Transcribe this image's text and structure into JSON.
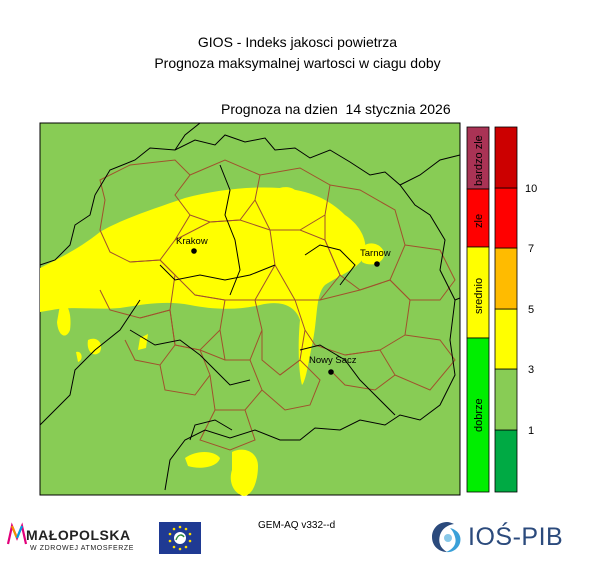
{
  "header": {
    "title_line1": "GIOS - Indeks jakosci powietrza",
    "title_line2": "Prognoza maksymalnej wartosci w ciagu doby",
    "forecast_date": "Prognoza na dzien  14 stycznia 2026"
  },
  "colors": {
    "dobrze": "#00ee00",
    "srednio": "#ffff00",
    "zle": "#ff0000",
    "bardzo_zle": "#aa3355",
    "map_background": "#88cc55",
    "county_border": "#a0522d",
    "region_border": "#000000"
  },
  "category_bar": [
    {
      "label": "dobrze",
      "color": "#00ee00"
    },
    {
      "label": "srednio",
      "color": "#ffff00"
    },
    {
      "label": "zle",
      "color": "#ff0000"
    },
    {
      "label": "bardzo zle",
      "color": "#aa3355"
    }
  ],
  "scale_bar": {
    "colors": [
      "#00aa44",
      "#88cc55",
      "#ffff00",
      "#ffbb00",
      "#ff0000",
      "#cc0000"
    ],
    "ticks": [
      "1",
      "3",
      "5",
      "7",
      "10"
    ]
  },
  "cities": [
    {
      "name": "Krakow"
    },
    {
      "name": "Tarnow"
    },
    {
      "name": "Nowy Sacz"
    }
  ],
  "footer": {
    "model": "GEM-AQ v332--d",
    "malopolska_name": "MAŁOPOLSKA",
    "malopolska_tagline": "W ZDROWEJ ATMOSFERZE",
    "ios_name": "IOŚ-PIB"
  }
}
